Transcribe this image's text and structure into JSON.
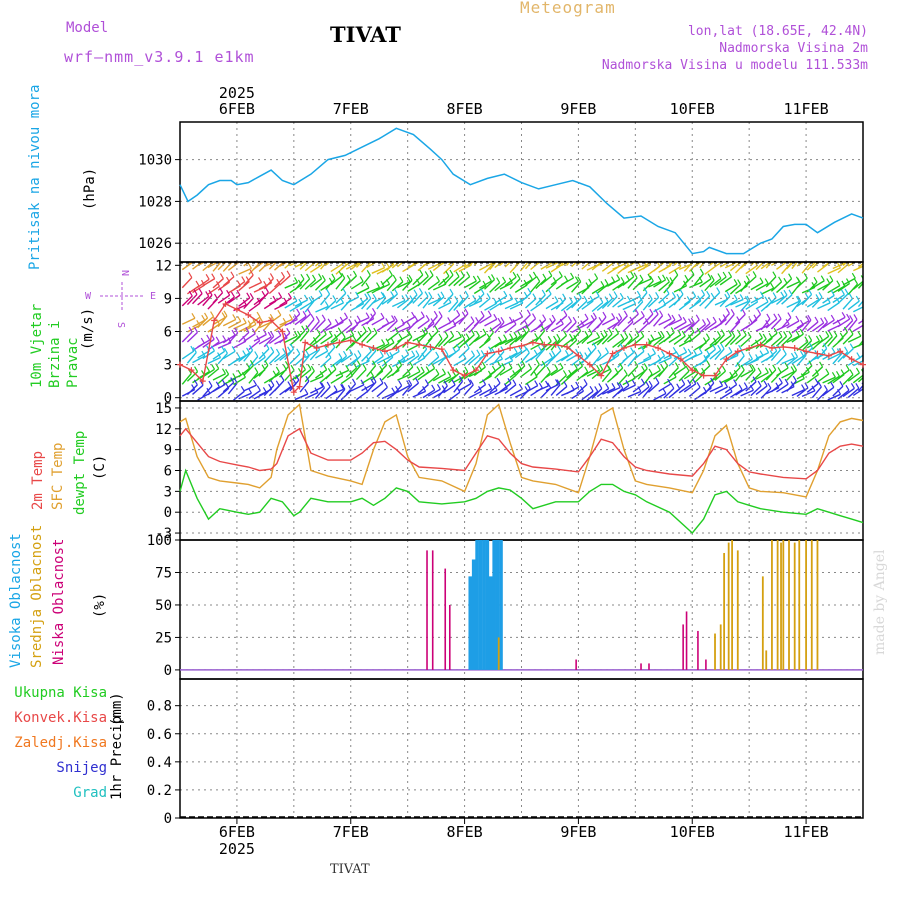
{
  "header": {
    "model_label": "Model",
    "model_name": "wrf—nmm_v3.9.1 e1km",
    "station": "TIVAT",
    "product": "Meteogram",
    "lonlat": "lon,lat (18.65E, 42.4N)",
    "altitude": "Nadmorska Visina 2m",
    "model_altitude": "Nadmorska Visina u modelu 111.533m",
    "footer_station": "TIVAT",
    "watermark": "made by Angel"
  },
  "colors": {
    "pressure": "#1aa6e6",
    "temp2m": "#e84848",
    "sfc": "#e0a030",
    "dewpt": "#22cc22",
    "low_cloud": "#cc0077",
    "mid_cloud": "#d4a010",
    "high_cloud": "#1e9ee6",
    "wind_speed": "#e84848",
    "rain_total": "#22cc22",
    "rain_konv": "#e84848",
    "rain_zaledj": "#f07820",
    "snow": "#3030d0",
    "grad": "#20c0c0"
  },
  "chart_data": [
    {
      "type": "line",
      "panel": "pressure",
      "ylabel_title": "Pritisak na nivou mora",
      "ylabel_unit": "(hPa)",
      "ylim": [
        1025.1,
        1031.8
      ],
      "yticks": [
        1026,
        1028,
        1030
      ],
      "x_unit": "days from 2025-02-05 12:00",
      "grid": true,
      "series": [
        {
          "x": [
            0,
            0.07,
            0.15,
            0.25,
            0.35,
            0.45,
            0.5,
            0.6,
            0.7,
            0.8,
            0.9,
            1.0,
            1.15,
            1.3,
            1.45,
            1.6,
            1.75,
            1.9,
            2.05,
            2.2,
            2.3,
            2.4,
            2.55,
            2.7,
            2.85,
            3.0,
            3.15,
            3.3,
            3.45,
            3.6,
            3.75,
            3.9,
            4.05,
            4.2,
            4.35,
            4.5,
            4.6,
            4.65,
            4.8,
            4.95,
            5.1,
            5.2,
            5.3,
            5.4,
            5.5,
            5.6,
            5.75,
            5.9,
            6.0
          ],
          "values": [
            1028.8,
            1028,
            1028.3,
            1028.8,
            1029,
            1029,
            1028.8,
            1028.9,
            1029.2,
            1029.5,
            1029,
            1028.8,
            1029.3,
            1030,
            1030.2,
            1030.6,
            1031,
            1031.5,
            1031.2,
            1030.5,
            1030,
            1029.3,
            1028.8,
            1029.1,
            1029.3,
            1028.9,
            1028.6,
            1028.8,
            1029,
            1028.7,
            1027.9,
            1027.2,
            1027.3,
            1026.8,
            1026.5,
            1025.5,
            1025.6,
            1025.8,
            1025.5,
            1025.5,
            1026,
            1026.2,
            1026.8,
            1026.9,
            1026.9,
            1026.5,
            1027,
            1027.4,
            1027.2
          ]
        }
      ]
    },
    {
      "type": "line",
      "panel": "wind",
      "ylabel_title": "10m Vjetar Brzina i Pravac",
      "ylabel_unit": "(m/s)",
      "ylim": [
        -0.3,
        12.3
      ],
      "yticks": [
        0,
        3,
        6,
        9,
        12
      ],
      "compass": {
        "n": "N",
        "s": "S",
        "w": "W",
        "e": "E"
      },
      "x_unit": "days from 2025-02-05 12:00",
      "grid": true,
      "series": [
        {
          "name": "wind speed",
          "x": [
            0,
            0.1,
            0.2,
            0.3,
            0.4,
            0.5,
            0.6,
            0.7,
            0.8,
            0.9,
            1.0,
            1.05,
            1.1,
            1.2,
            1.3,
            1.4,
            1.5,
            1.6,
            1.7,
            1.8,
            1.9,
            2.0,
            2.1,
            2.2,
            2.3,
            2.4,
            2.5,
            2.6,
            2.7,
            2.8,
            2.9,
            3.0,
            3.1,
            3.2,
            3.3,
            3.4,
            3.5,
            3.6,
            3.7,
            3.8,
            3.9,
            4.0,
            4.1,
            4.2,
            4.3,
            4.4,
            4.5,
            4.6,
            4.7,
            4.8,
            4.9,
            5.0,
            5.1,
            5.2,
            5.3,
            5.4,
            5.5,
            5.6,
            5.7,
            5.8,
            5.9,
            6.0
          ],
          "values": [
            3,
            2.5,
            1.5,
            7,
            8.5,
            8,
            7.5,
            6.8,
            7,
            6,
            0.5,
            1,
            5,
            4.5,
            4.8,
            5,
            5.2,
            4.8,
            4.5,
            4.2,
            4.5,
            5,
            4.8,
            4.6,
            4.4,
            2.5,
            2,
            2.5,
            4,
            4.2,
            4.5,
            4.7,
            5,
            4.8,
            4.8,
            4.6,
            3.8,
            3,
            2,
            4,
            4.5,
            4.8,
            4.8,
            4.5,
            4,
            3.5,
            2.5,
            2,
            2,
            3.5,
            4.2,
            4.5,
            4.8,
            4.5,
            4.6,
            4.5,
            4.2,
            4,
            3.8,
            4.2,
            3.5,
            3
          ]
        }
      ]
    },
    {
      "type": "line",
      "panel": "temperature",
      "ylabel_lines": [
        "2m Temp",
        "SFC Temp",
        "dewpt Temp"
      ],
      "ylabel_unit": "(C)",
      "ylim": [
        -4,
        16
      ],
      "yticks": [
        -3,
        0,
        3,
        6,
        9,
        12,
        15
      ],
      "x_unit": "days from 2025-02-05 12:00",
      "grid": true,
      "series": [
        {
          "name": "2m Temp",
          "x": [
            0,
            0.05,
            0.15,
            0.25,
            0.35,
            0.5,
            0.6,
            0.7,
            0.8,
            0.85,
            0.95,
            1.05,
            1.15,
            1.3,
            1.5,
            1.6,
            1.7,
            1.8,
            1.9,
            2.0,
            2.1,
            2.3,
            2.5,
            2.6,
            2.7,
            2.8,
            2.9,
            3.0,
            3.1,
            3.3,
            3.5,
            3.6,
            3.7,
            3.8,
            3.9,
            4.0,
            4.1,
            4.3,
            4.5,
            4.6,
            4.7,
            4.8,
            4.9,
            5.0,
            5.1,
            5.3,
            5.5,
            5.6,
            5.7,
            5.8,
            5.9,
            6.0
          ],
          "values": [
            11,
            12,
            10,
            8,
            7.3,
            6.8,
            6.5,
            6,
            6.2,
            7,
            11,
            12,
            8.5,
            7.5,
            7.5,
            8.5,
            10,
            10.2,
            9,
            7.5,
            6.5,
            6.3,
            6,
            8.5,
            11,
            10.5,
            8.5,
            7,
            6.5,
            6.2,
            5.8,
            8,
            10.5,
            10,
            8,
            6.5,
            6,
            5.5,
            5.2,
            7,
            9.5,
            9,
            7,
            5.8,
            5.5,
            5,
            4.8,
            6,
            8.5,
            9.5,
            9.8,
            9.5
          ]
        },
        {
          "name": "SFC Temp",
          "x": [
            0,
            0.05,
            0.15,
            0.25,
            0.35,
            0.5,
            0.6,
            0.7,
            0.8,
            0.85,
            0.95,
            1.05,
            1.15,
            1.3,
            1.5,
            1.6,
            1.7,
            1.8,
            1.9,
            2.0,
            2.1,
            2.3,
            2.5,
            2.6,
            2.7,
            2.8,
            2.9,
            3.0,
            3.1,
            3.3,
            3.5,
            3.6,
            3.7,
            3.8,
            3.9,
            4.0,
            4.1,
            4.3,
            4.5,
            4.6,
            4.7,
            4.8,
            4.9,
            5.0,
            5.1,
            5.3,
            5.5,
            5.6,
            5.7,
            5.8,
            5.9,
            6.0
          ],
          "values": [
            13,
            13.5,
            8,
            5,
            4.5,
            4.2,
            4,
            3.5,
            5,
            9,
            14,
            15.5,
            6,
            5.2,
            4.5,
            4,
            9,
            13,
            14,
            8,
            5,
            4.5,
            3,
            7,
            14,
            15.5,
            10,
            5,
            4.5,
            4,
            2.8,
            8,
            14,
            15,
            9,
            4.5,
            4,
            3.5,
            2.8,
            6,
            11,
            12.5,
            7,
            3.5,
            3,
            2.8,
            2.2,
            6,
            11,
            13,
            13.5,
            13.2
          ]
        },
        {
          "name": "dewpt Temp",
          "x": [
            0,
            0.05,
            0.15,
            0.25,
            0.35,
            0.5,
            0.6,
            0.7,
            0.8,
            0.9,
            1.0,
            1.05,
            1.15,
            1.3,
            1.5,
            1.6,
            1.7,
            1.8,
            1.9,
            2.0,
            2.1,
            2.3,
            2.5,
            2.6,
            2.7,
            2.8,
            2.9,
            3.0,
            3.1,
            3.3,
            3.5,
            3.6,
            3.7,
            3.8,
            3.9,
            4.0,
            4.1,
            4.3,
            4.5,
            4.6,
            4.7,
            4.8,
            4.9,
            5.0,
            5.1,
            5.3,
            5.5,
            5.6,
            5.7,
            5.8,
            5.9,
            6.0
          ],
          "values": [
            3,
            6,
            2,
            -1,
            0.5,
            0,
            -0.3,
            0,
            2,
            1.5,
            -0.5,
            0,
            2,
            1.5,
            1.5,
            2,
            1,
            2,
            3.5,
            3,
            1.5,
            1.2,
            1.5,
            2,
            3,
            3.5,
            3.2,
            2,
            0.5,
            1.5,
            1.5,
            3,
            4,
            4,
            3,
            2.5,
            1.5,
            0,
            -3,
            -1,
            2.5,
            3,
            1.5,
            1,
            0.5,
            0,
            -0.3,
            0.5,
            0,
            -0.5,
            -1,
            -1.5
          ]
        }
      ]
    },
    {
      "type": "bar",
      "panel": "clouds",
      "ylabel_lines": [
        "Visoka Oblacnost",
        "Srednja Oblacnost",
        "Niska  Oblacnost"
      ],
      "ylabel_unit": "(%)",
      "ylim": [
        -7,
        100
      ],
      "yticks": [
        0,
        25,
        50,
        75,
        100
      ],
      "x_unit": "days from 2025-02-05 12:00",
      "grid": true,
      "series": [
        {
          "name": "Niska Oblacnost",
          "x": [
            2.17,
            2.22,
            2.33,
            2.37,
            3.48,
            4.05,
            4.12,
            4.42,
            4.45,
            4.55,
            4.62
          ],
          "values": [
            92,
            92,
            78,
            50,
            8,
            5,
            5,
            35,
            45,
            30,
            8
          ]
        },
        {
          "name": "Visoka Oblacnost",
          "x": [
            2.55,
            2.58,
            2.61,
            2.64,
            2.67,
            2.7,
            2.73,
            2.76,
            2.79,
            2.82
          ],
          "values": [
            72,
            85,
            100,
            100,
            100,
            100,
            72,
            100,
            100,
            100
          ]
        },
        {
          "name": "Srednja Oblacnost",
          "x": [
            2.8,
            4.7,
            4.75,
            4.78,
            4.82,
            4.85,
            4.9,
            5.12,
            5.15,
            5.2,
            5.25,
            5.28,
            5.3,
            5.35,
            5.4,
            5.44,
            5.5,
            5.55,
            5.6
          ],
          "values": [
            25,
            28,
            35,
            90,
            98,
            100,
            92,
            72,
            15,
            100,
            100,
            98,
            100,
            100,
            98,
            100,
            100,
            100,
            100
          ]
        }
      ]
    },
    {
      "type": "bar",
      "panel": "precip",
      "ylabel_title": "1hr Precip",
      "ylabel_unit": "(mm)",
      "ylim": [
        0,
        0.99
      ],
      "yticks": [
        0,
        0.2,
        0.4,
        0.6,
        0.8
      ],
      "legend": [
        "Ukupna  Kisa",
        "Konvek.Kisa",
        "Zaledj.Kisa",
        "Snijeg",
        "Grad"
      ],
      "x_unit": "days from 2025-02-05 12:00",
      "grid": true,
      "series": [
        {
          "name": "Ukupna  Kisa",
          "values": []
        },
        {
          "name": "Konvek.Kisa",
          "values": []
        },
        {
          "name": "Zaledj.Kisa",
          "values": []
        },
        {
          "name": "Snijeg",
          "values": []
        },
        {
          "name": "Grad",
          "values": []
        }
      ]
    }
  ],
  "x_axis": {
    "day_ticks": [
      0.5,
      1.5,
      2.5,
      3.5,
      4.5,
      5.5
    ],
    "day_labels": [
      "6FEB",
      "7FEB",
      "8FEB",
      "9FEB",
      "10FEB",
      "11FEB"
    ],
    "year_label": "2025",
    "dotted_positions": [
      0.0,
      0.5,
      1.0,
      1.5,
      2.0,
      2.5,
      3.0,
      3.5,
      4.0,
      4.5,
      5.0,
      5.5
    ],
    "range": [
      0,
      6
    ]
  }
}
